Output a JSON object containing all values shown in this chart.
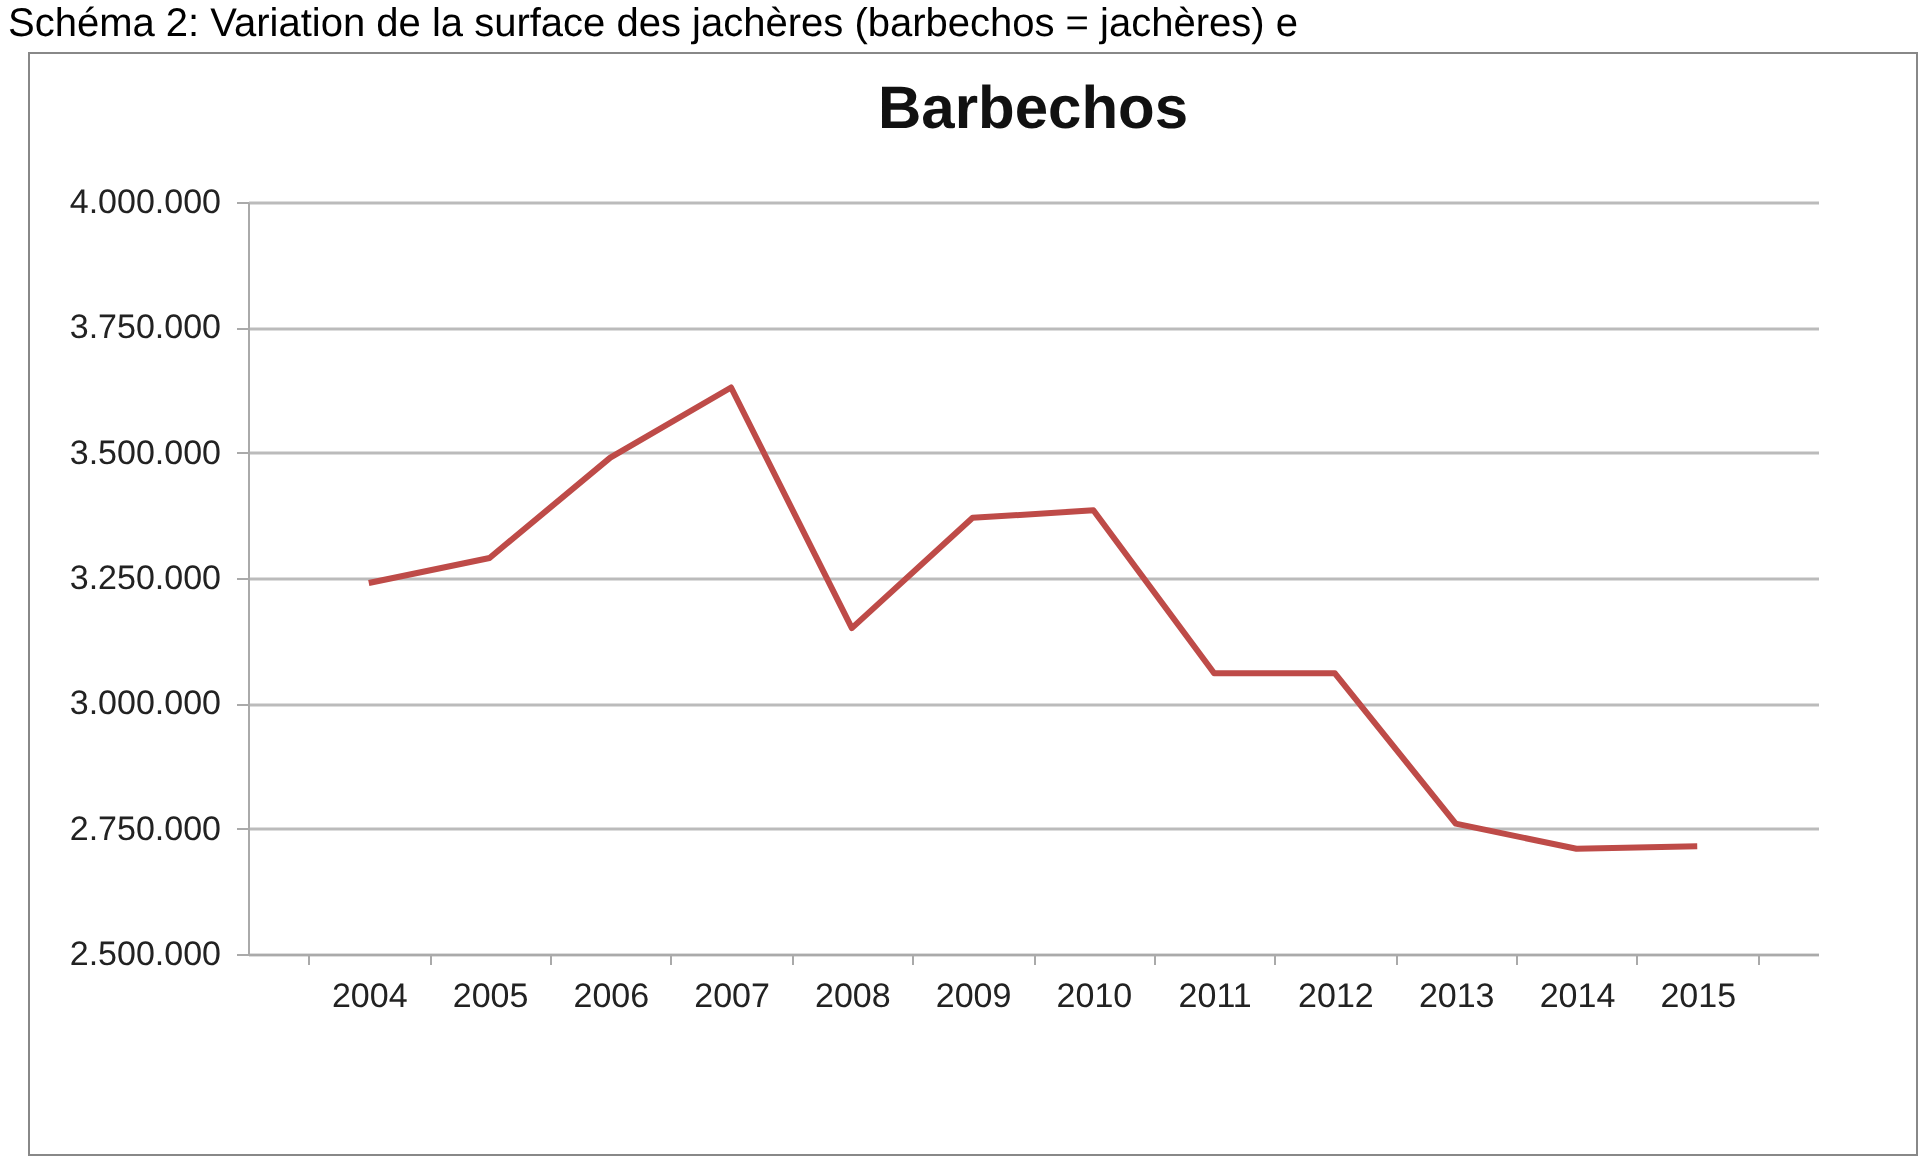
{
  "chart_data": {
    "type": "line",
    "title": "Barbechos",
    "annotations": [
      "Schéma 2: Variation de la surface des jachères (barbechos = jachères) e"
    ],
    "categories": [
      "2004",
      "2005",
      "2006",
      "2007",
      "2008",
      "2009",
      "2010",
      "2011",
      "2012",
      "2013",
      "2014",
      "2015"
    ],
    "series": [
      {
        "color": "#be4b48",
        "values": [
          3240000,
          3290000,
          3490000,
          3630000,
          3150000,
          3370000,
          3385000,
          3060000,
          3060000,
          2760000,
          2710000,
          2715000
        ]
      }
    ],
    "ylim": [
      2500000,
      4000000
    ],
    "yticks": [
      {
        "value": 2500000,
        "label": "2.500.000"
      },
      {
        "value": 2750000,
        "label": "2.750.000"
      },
      {
        "value": 3000000,
        "label": "3.000.000"
      },
      {
        "value": 3250000,
        "label": "3.250.000"
      },
      {
        "value": 3500000,
        "label": "3.500.000"
      },
      {
        "value": 3750000,
        "label": "3.750.000"
      },
      {
        "value": 4000000,
        "label": "4.000.000"
      }
    ],
    "grid": "y",
    "marker": "none",
    "line_style": "solid"
  }
}
